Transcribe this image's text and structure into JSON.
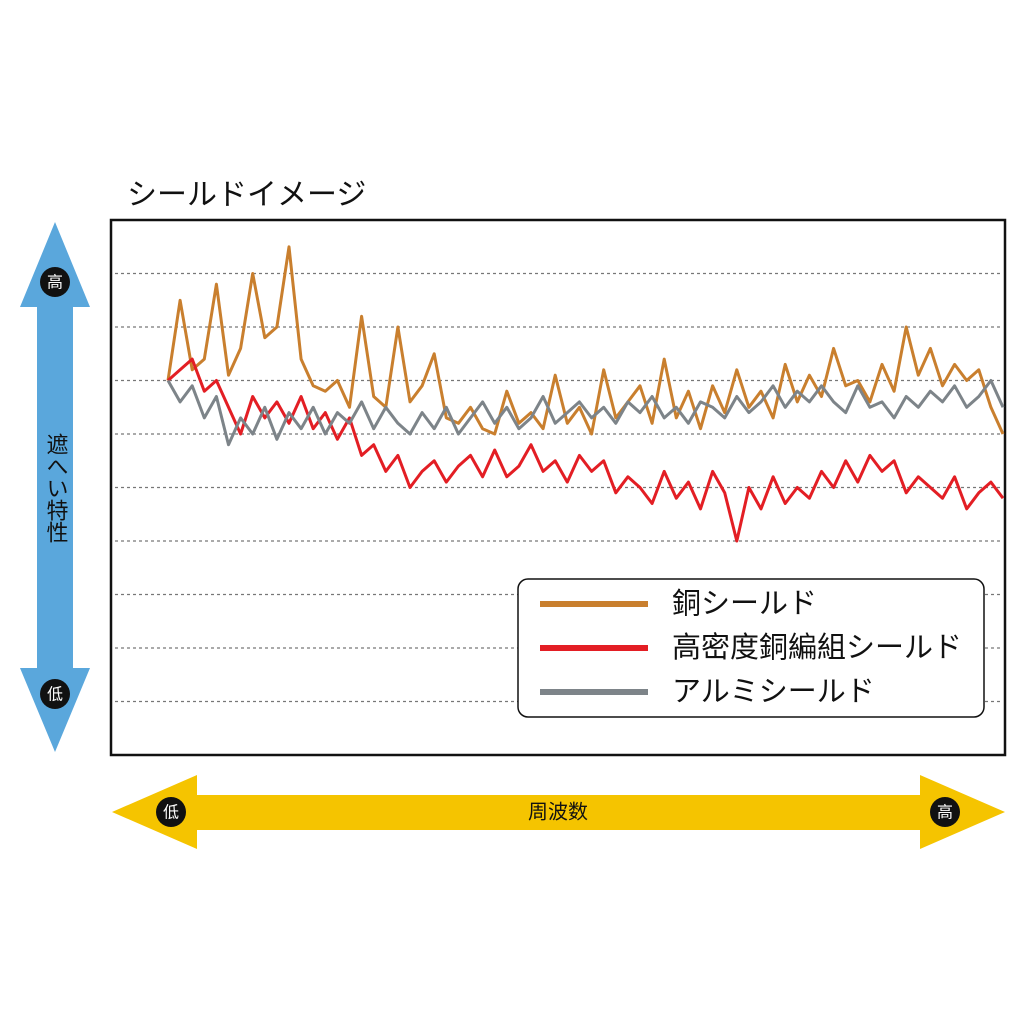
{
  "chart_data": {
    "type": "line",
    "title": "シールドイメージ",
    "y_axis": {
      "label": "遮へい特性",
      "high": "高",
      "low": "低"
    },
    "x_axis": {
      "label": "周波数",
      "low": "低",
      "high": "高"
    },
    "ylim": [
      0,
      10
    ],
    "grid_lines": [
      1,
      2,
      3,
      4,
      5,
      6,
      7,
      8,
      9
    ],
    "legend": "lower right",
    "series": [
      {
        "name": "銅シールド",
        "color": "#c97f2e",
        "values": [
          7.0,
          8.5,
          7.2,
          7.4,
          8.8,
          7.1,
          7.6,
          9.0,
          7.8,
          8.0,
          9.5,
          7.4,
          6.9,
          6.8,
          7.0,
          6.5,
          8.2,
          6.7,
          6.5,
          8.0,
          6.6,
          6.9,
          7.5,
          6.3,
          6.2,
          6.5,
          6.1,
          6.0,
          6.8,
          6.2,
          6.4,
          6.1,
          7.1,
          6.2,
          6.5,
          6.0,
          7.2,
          6.3,
          6.6,
          6.9,
          6.2,
          7.4,
          6.3,
          6.8,
          6.1,
          6.9,
          6.4,
          7.2,
          6.5,
          6.8,
          6.3,
          7.3,
          6.6,
          7.1,
          6.7,
          7.6,
          6.9,
          7.0,
          6.6,
          7.3,
          6.8,
          8.0,
          7.1,
          7.6,
          6.9,
          7.3,
          7.0,
          7.2,
          6.5,
          6.0
        ]
      },
      {
        "name": "高密度銅編組シールド",
        "color": "#e31e24",
        "values": [
          7.0,
          7.2,
          7.4,
          6.8,
          7.0,
          6.5,
          6.0,
          6.7,
          6.3,
          6.6,
          6.2,
          6.7,
          6.1,
          6.4,
          5.9,
          6.3,
          5.6,
          5.8,
          5.3,
          5.6,
          5.0,
          5.3,
          5.5,
          5.1,
          5.4,
          5.6,
          5.2,
          5.7,
          5.2,
          5.4,
          5.8,
          5.3,
          5.5,
          5.1,
          5.6,
          5.3,
          5.5,
          4.9,
          5.2,
          5.0,
          4.7,
          5.3,
          4.8,
          5.1,
          4.6,
          5.3,
          4.9,
          4.0,
          5.0,
          4.6,
          5.2,
          4.7,
          5.0,
          4.8,
          5.3,
          5.0,
          5.5,
          5.1,
          5.6,
          5.3,
          5.5,
          4.9,
          5.2,
          5.0,
          4.8,
          5.2,
          4.6,
          4.9,
          5.1,
          4.8
        ]
      },
      {
        "name": "アルミシールド",
        "color": "#7d8489",
        "values": [
          7.0,
          6.6,
          6.9,
          6.3,
          6.7,
          5.8,
          6.3,
          6.0,
          6.5,
          5.9,
          6.4,
          6.1,
          6.5,
          6.0,
          6.4,
          6.2,
          6.6,
          6.1,
          6.5,
          6.2,
          6.0,
          6.4,
          6.1,
          6.5,
          6.0,
          6.3,
          6.6,
          6.2,
          6.5,
          6.1,
          6.3,
          6.7,
          6.2,
          6.4,
          6.6,
          6.3,
          6.5,
          6.2,
          6.6,
          6.4,
          6.7,
          6.3,
          6.5,
          6.2,
          6.6,
          6.5,
          6.3,
          6.7,
          6.4,
          6.6,
          6.9,
          6.5,
          6.8,
          6.6,
          6.9,
          6.6,
          6.4,
          6.9,
          6.5,
          6.6,
          6.3,
          6.7,
          6.5,
          6.8,
          6.6,
          6.9,
          6.5,
          6.7,
          7.0,
          6.5
        ]
      }
    ]
  }
}
